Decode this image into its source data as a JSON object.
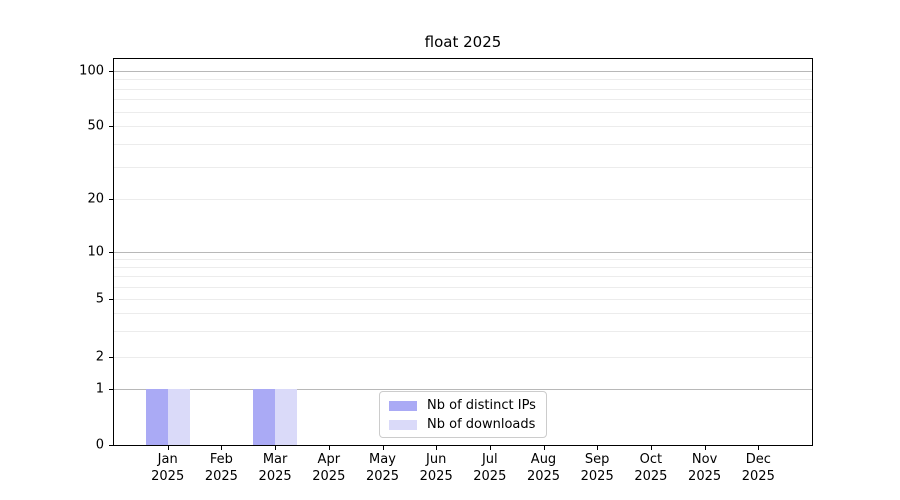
{
  "title": "float 2025",
  "chart_data": {
    "type": "bar",
    "title": "float 2025",
    "categories": [
      "Jan 2025",
      "Feb 2025",
      "Mar 2025",
      "Apr 2025",
      "May 2025",
      "Jun 2025",
      "Jul 2025",
      "Aug 2025",
      "Sep 2025",
      "Oct 2025",
      "Nov 2025",
      "Dec 2025"
    ],
    "series": [
      {
        "name": "Nb of distinct IPs",
        "color": "#aaaaf5",
        "values": [
          1,
          0,
          1,
          0,
          0,
          0,
          0,
          0,
          0,
          0,
          0,
          0
        ]
      },
      {
        "name": "Nb of downloads",
        "color": "#dadaf9",
        "values": [
          1,
          0,
          1,
          0,
          0,
          0,
          0,
          0,
          0,
          0,
          0,
          0
        ]
      }
    ],
    "xlabel": "",
    "ylabel": "",
    "y_axis": {
      "scale": "symlog",
      "tick_values": [
        0,
        1,
        2,
        5,
        10,
        20,
        50,
        100
      ],
      "ylim": [
        0,
        110
      ],
      "calibration": [
        [
          0,
          1.0
        ],
        [
          1,
          0.8549
        ],
        [
          2,
          0.772
        ],
        [
          5,
          0.6218
        ],
        [
          10,
          0.4987
        ],
        [
          20,
          0.3627
        ],
        [
          50,
          0.1736
        ],
        [
          100,
          0.0311
        ]
      ]
    },
    "grid": {
      "major_values": [
        1,
        10,
        100
      ],
      "minor_values": [
        2,
        3,
        4,
        5,
        6,
        7,
        8,
        9,
        20,
        30,
        40,
        50,
        60,
        70,
        80,
        90
      ],
      "major_color": "#b8b8b8",
      "minor_color": "#ececec"
    },
    "legend": {
      "position": "bottom-center",
      "entries": [
        "Nb of distinct IPs",
        "Nb of downloads"
      ]
    }
  }
}
